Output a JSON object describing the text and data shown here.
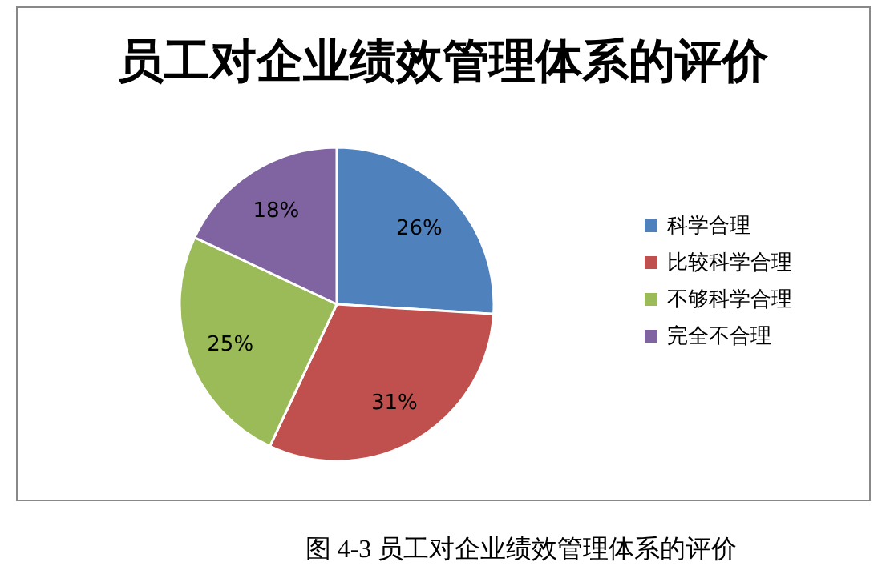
{
  "chart_data": {
    "type": "pie",
    "title": "员工对企业绩效管理体系的评价",
    "categories": [
      "科学合理",
      "比较科学合理",
      "不够科学合理",
      "完全不合理"
    ],
    "values": [
      26,
      31,
      25,
      18
    ],
    "colors": [
      "#4f81bd",
      "#c0504d",
      "#9bbb59",
      "#8064a2"
    ],
    "value_labels": [
      "26%",
      "31%",
      "25%",
      "18%"
    ],
    "legend": "right",
    "annotations": [
      "图 4-3  员工对企业绩效管理体系的评价"
    ]
  }
}
